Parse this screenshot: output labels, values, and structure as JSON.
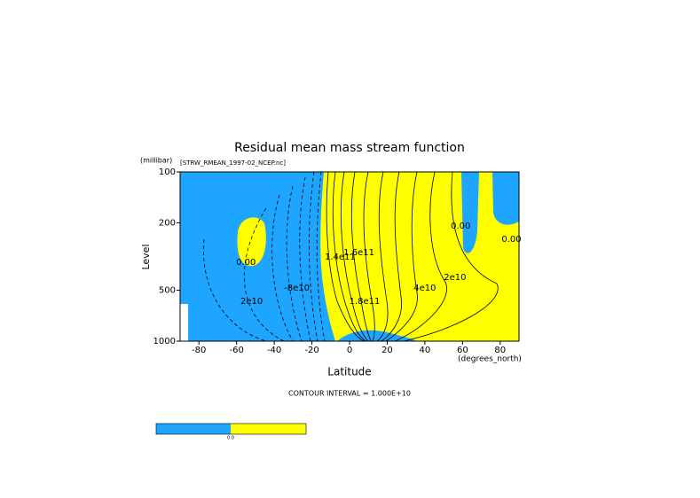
{
  "chart_data": {
    "type": "contour",
    "title": "Residual mean mass stream function",
    "subtitle": "[STRW_RMEAN_1997-02_NCEP.nc]",
    "y_unit": "(millibar)",
    "y_label": "Level",
    "x_label": "Latitude",
    "x_unit": "(degrees_north)",
    "footer": "CONTOUR INTERVAL = 1.000E+10",
    "xlim": [
      -90,
      90
    ],
    "xticks": [
      -80,
      -60,
      -40,
      -20,
      0,
      20,
      40,
      60,
      80
    ],
    "ylim": [
      100,
      1000
    ],
    "yticks": [
      100,
      200,
      500,
      1000
    ],
    "y_log": true,
    "y_inverted": true,
    "fill_colors": [
      "#1ea5ff",
      "#ffff00"
    ],
    "colorbar_label": "0.0",
    "contour_labels": [
      {
        "label": "0.00",
        "lat": -55,
        "level": 342
      },
      {
        "label": "2e10",
        "lat": -52,
        "level": 580
      },
      {
        "label": "-8e10",
        "lat": -28,
        "level": 485
      },
      {
        "label": "1.4e11",
        "lat": -5,
        "level": 318
      },
      {
        "label": "1.6e11",
        "lat": 5,
        "level": 300
      },
      {
        "label": "1.8e11",
        "lat": 8,
        "level": 580
      },
      {
        "label": "4e10",
        "lat": 40,
        "level": 485
      },
      {
        "label": "2e10",
        "lat": 56,
        "level": 420
      },
      {
        "label": "0.00",
        "lat": 59,
        "level": 208
      },
      {
        "label": "0.00",
        "lat": 86,
        "level": 250
      }
    ]
  }
}
